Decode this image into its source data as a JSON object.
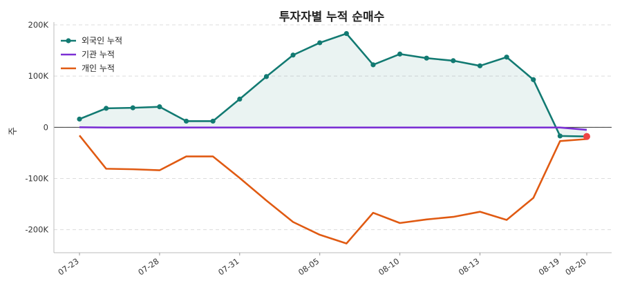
{
  "chart_data": {
    "type": "line",
    "title": "투자자별 누적 순매수",
    "ylabel": "주",
    "xlabel": "",
    "ylim": [
      -245000,
      200000
    ],
    "y_ticks": [
      200000,
      100000,
      0,
      -100000,
      -200000
    ],
    "y_tick_labels": [
      "200K",
      "100K",
      "0",
      "-100K",
      "-200K"
    ],
    "x_tick_labels": [
      {
        "index": 0,
        "label": "07-23"
      },
      {
        "index": 3,
        "label": "07-28"
      },
      {
        "index": 6,
        "label": "07-31"
      },
      {
        "index": 9,
        "label": "08-05"
      },
      {
        "index": 12,
        "label": "08-10"
      },
      {
        "index": 15,
        "label": "08-13"
      },
      {
        "index": 18,
        "label": "08-19"
      },
      {
        "index": 19,
        "label": "08-20"
      }
    ],
    "legend_position": "top-left",
    "grid": "y-dashed",
    "series": [
      {
        "name": "외국인 누적",
        "color": "#127a72",
        "markers": true,
        "fill": true,
        "values": [
          16000,
          37000,
          38000,
          40000,
          12000,
          12000,
          55000,
          99000,
          141000,
          165000,
          183000,
          122000,
          143000,
          135000,
          130000,
          120000,
          137000,
          93000,
          -17000,
          -18000
        ]
      },
      {
        "name": "기관 누적",
        "color": "#7b2fd4",
        "markers": false,
        "fill": false,
        "values": [
          0,
          -500,
          -500,
          -500,
          -500,
          -500,
          -500,
          -500,
          -500,
          -500,
          -500,
          -500,
          -500,
          -500,
          -500,
          -500,
          -500,
          -500,
          -500,
          -5000
        ]
      },
      {
        "name": "개인 누적",
        "color": "#e05a12",
        "markers": false,
        "fill": false,
        "values": [
          -16000,
          -81000,
          -82000,
          -84000,
          -57000,
          -57000,
          -99000,
          -143000,
          -185000,
          -210000,
          -227000,
          -167000,
          -187000,
          -180000,
          -175000,
          -165000,
          -181000,
          -138000,
          -27000,
          -23000
        ]
      }
    ],
    "highlight_point": {
      "series": "외국인 누적",
      "index": 19,
      "color": "#ee4444"
    }
  }
}
